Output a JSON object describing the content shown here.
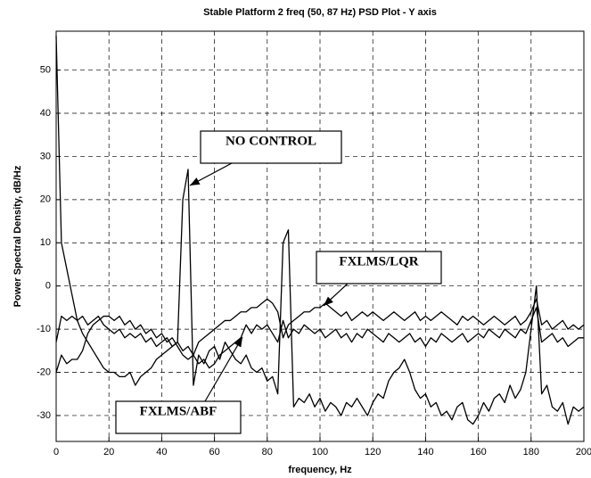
{
  "chart_data": {
    "type": "line",
    "title": "Stable Platform 2 freq (50, 87 Hz) PSD Plot - Y axis",
    "xlabel": "frequency, Hz",
    "ylabel": "Power Spectral Density, dB/Hz",
    "x": [
      0,
      2,
      4,
      6,
      8,
      10,
      12,
      14,
      16,
      18,
      20,
      22,
      24,
      26,
      28,
      30,
      32,
      34,
      36,
      38,
      40,
      42,
      44,
      46,
      48,
      50,
      52,
      54,
      56,
      58,
      60,
      62,
      64,
      66,
      68,
      70,
      72,
      74,
      76,
      78,
      80,
      82,
      84,
      86,
      88,
      90,
      92,
      94,
      96,
      98,
      100,
      102,
      104,
      106,
      108,
      110,
      112,
      114,
      116,
      118,
      120,
      122,
      124,
      126,
      128,
      130,
      132,
      134,
      136,
      138,
      140,
      142,
      144,
      146,
      148,
      150,
      152,
      154,
      156,
      158,
      160,
      162,
      164,
      166,
      168,
      170,
      172,
      174,
      176,
      178,
      180,
      182,
      184,
      186,
      188,
      190,
      192,
      194,
      196,
      198,
      200
    ],
    "series": [
      {
        "color": "#000000",
        "values": [
          58,
          10,
          4,
          -2,
          -8,
          -11,
          -13,
          -15,
          -17,
          -19,
          -20,
          -20,
          -21,
          -21,
          -20,
          -23,
          -21,
          -20,
          -19,
          -17,
          -16,
          -15,
          -14,
          -13,
          20,
          27,
          -23,
          -16,
          -18,
          -15,
          -14,
          -17,
          -13,
          -15,
          -17,
          -18,
          -16,
          -19,
          -20,
          -19,
          -22,
          -21,
          -25,
          10,
          13,
          -28,
          -26,
          -27,
          -25,
          -28,
          -26,
          -29,
          -27,
          -28,
          -30,
          -27,
          -28,
          -26,
          -28,
          -30,
          -27,
          -25,
          -26,
          -22,
          -20,
          -19,
          -17,
          -20,
          -24,
          -26,
          -25,
          -28,
          -27,
          -30,
          -29,
          -31,
          -28,
          -27,
          -31,
          -32,
          -30,
          -27,
          -29,
          -26,
          -25,
          -27,
          -23,
          -26,
          -24,
          -20,
          -10,
          0,
          -25,
          -23,
          -28,
          -29,
          -27,
          -32,
          -28,
          -29,
          -28
        ]
      },
      {
        "color": "#000000",
        "values": [
          -13,
          -7,
          -8,
          -7,
          -8,
          -7,
          -9,
          -8,
          -7,
          -9,
          -10,
          -11,
          -10,
          -12,
          -11,
          -12,
          -11,
          -13,
          -12,
          -14,
          -13,
          -12,
          -14,
          -13,
          -15,
          -14,
          -16,
          -13,
          -12,
          -11,
          -10,
          -9,
          -8,
          -8,
          -7,
          -6,
          -6,
          -5,
          -5,
          -4,
          -3,
          -4,
          -6,
          -12,
          -9,
          -8,
          -7,
          -6,
          -6,
          -5,
          -5,
          -4,
          -5,
          -6,
          -7,
          -6,
          -8,
          -7,
          -6,
          -7,
          -6,
          -7,
          -8,
          -7,
          -6,
          -7,
          -8,
          -7,
          -6,
          -8,
          -7,
          -8,
          -7,
          -6,
          -7,
          -8,
          -9,
          -7,
          -8,
          -7,
          -8,
          -9,
          -8,
          -7,
          -8,
          -9,
          -8,
          -7,
          -9,
          -8,
          -6,
          -3,
          -9,
          -8,
          -10,
          -9,
          -8,
          -10,
          -9,
          -10,
          -9
        ]
      },
      {
        "color": "#000000",
        "values": [
          -20,
          -16,
          -18,
          -17,
          -17,
          -15,
          -11,
          -9,
          -8,
          -7,
          -7,
          -8,
          -7,
          -9,
          -8,
          -10,
          -9,
          -11,
          -10,
          -12,
          -11,
          -13,
          -12,
          -14,
          -16,
          -17,
          -16,
          -18,
          -17,
          -19,
          -18,
          -16,
          -15,
          -14,
          -13,
          -12,
          -9,
          -11,
          -9,
          -10,
          -9,
          -11,
          -13,
          -8,
          -12,
          -10,
          -11,
          -9,
          -10,
          -11,
          -10,
          -12,
          -11,
          -10,
          -12,
          -11,
          -13,
          -11,
          -12,
          -10,
          -11,
          -12,
          -13,
          -11,
          -12,
          -13,
          -12,
          -11,
          -13,
          -12,
          -14,
          -12,
          -13,
          -11,
          -12,
          -13,
          -12,
          -11,
          -13,
          -12,
          -11,
          -12,
          -10,
          -11,
          -12,
          -10,
          -11,
          -12,
          -10,
          -11,
          -8,
          -5,
          -13,
          -12,
          -11,
          -13,
          -12,
          -14,
          -13,
          -12,
          -12
        ]
      }
    ],
    "annotations": [
      "NO CONTROL",
      "FXLMS/LQR",
      "FXLMS/ABF"
    ],
    "xlim": [
      0,
      200
    ],
    "xticks": [
      0,
      20,
      40,
      60,
      80,
      100,
      120,
      140,
      160,
      180,
      200
    ],
    "ylim": [
      -36,
      59
    ],
    "yticks": [
      -30,
      -20,
      -10,
      0,
      10,
      20,
      30,
      40,
      50
    ],
    "grid": true
  }
}
